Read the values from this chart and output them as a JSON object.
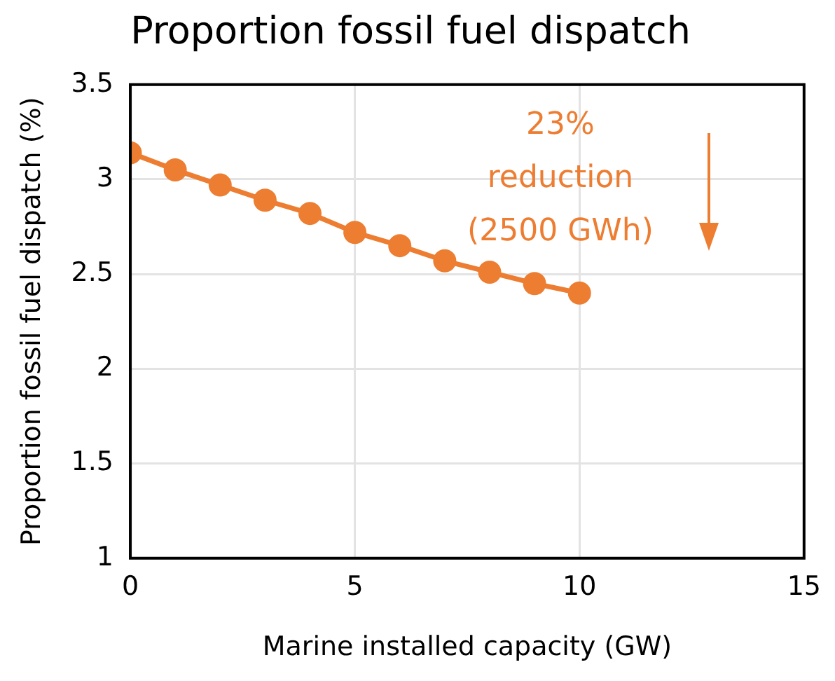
{
  "chart_data": {
    "type": "line",
    "title": "Proportion fossil fuel dispatch",
    "xlabel": "Marine installed capacity (GW)",
    "ylabel": "Proportion fossil fuel dispatch (%)",
    "x": [
      0,
      1,
      2,
      3,
      4,
      5,
      6,
      7,
      8,
      9,
      10
    ],
    "series": [
      {
        "color": "#ed7d31",
        "values": [
          3.14,
          3.05,
          2.97,
          2.89,
          2.82,
          2.72,
          2.65,
          2.57,
          2.51,
          2.45,
          2.4
        ]
      }
    ],
    "xlim": [
      0,
      15
    ],
    "xticks": [
      0,
      5,
      10,
      15
    ],
    "ylim": [
      1,
      3.5
    ],
    "yticks": [
      1,
      1.5,
      2,
      2.5,
      3,
      3.5
    ],
    "grid": true,
    "legend": false,
    "marker": "circle",
    "line_style": "solid",
    "annotations": [
      "23%\nreduction\n(2500 GWh)"
    ]
  }
}
